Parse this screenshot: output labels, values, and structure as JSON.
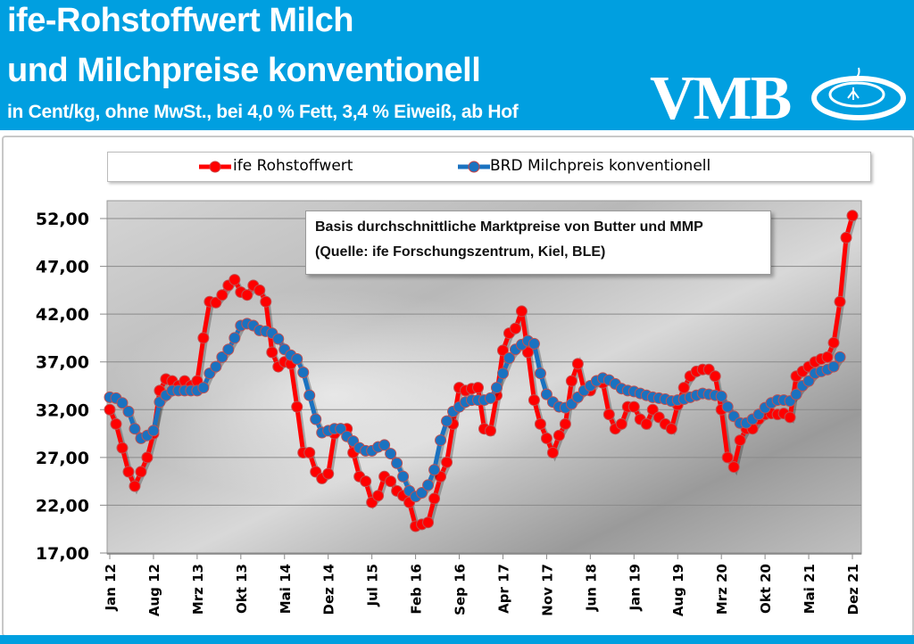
{
  "header": {
    "title_line1": "ife-Rohstoffwert Milch",
    "title_line2": "und Milchpreise konventionell",
    "subtitle": "in Cent/kg, ohne MwSt., bei 4,0 % Fett, 3,4 % Eiweiß, ab Hof",
    "logo_text": "VMB"
  },
  "colors": {
    "header_bg": "#009fe0",
    "red_series": "#ff0000",
    "blue_series": "#1a72c0"
  },
  "chart_data": {
    "type": "line",
    "title": "",
    "xlabel": "",
    "ylabel": "",
    "ylim": [
      17,
      52
    ],
    "y_ticks": [
      "17,00",
      "22,00",
      "27,00",
      "32,00",
      "37,00",
      "42,00",
      "47,00",
      "52,00"
    ],
    "x_tick_labels": [
      "Jan 12",
      "Aug 12",
      "Mrz 13",
      "Okt 13",
      "Mai 14",
      "Dez 14",
      "Jul 15",
      "Feb 16",
      "Sep 16",
      "Apr 17",
      "Nov 17",
      "Jun 18",
      "Jan 19",
      "Aug 19",
      "Mrz 20",
      "Okt 20",
      "Mai 21",
      "Dez 21"
    ],
    "x_start": "Jan 12",
    "x_end": "Dez 21",
    "x_step": "monthly",
    "grid": true,
    "legend_position": "top",
    "annotation_line1": "Basis durchschnittliche Marktpreise von Butter und MMP",
    "annotation_line2": "(Quelle: ife Forschungszentrum, Kiel, BLE)",
    "series": [
      {
        "name": "ife Rohstoffwert",
        "color": "#ff0000",
        "values": [
          32,
          30.5,
          28,
          25.5,
          24,
          25.5,
          27,
          29.5,
          34,
          35.2,
          35,
          34.5,
          35,
          34.5,
          35,
          39.5,
          43.3,
          43.2,
          44,
          45,
          45.6,
          44.3,
          44,
          45,
          44.5,
          43.3,
          38,
          36.5,
          37,
          36.8,
          32.3,
          27.5,
          27.5,
          25.5,
          24.8,
          25.3,
          29.5,
          30,
          30,
          27.5,
          25,
          24.5,
          22.3,
          23,
          25,
          24.5,
          23.5,
          23,
          22.3,
          19.8,
          20,
          20.2,
          22.7,
          25,
          26.5,
          30.5,
          34.3,
          34,
          34.2,
          34.3,
          30,
          29.8,
          33.5,
          38.2,
          40,
          40.5,
          42.3,
          38,
          33,
          30.5,
          29,
          27.5,
          29.3,
          30.5,
          35,
          36.8,
          34,
          34,
          35,
          34.8,
          31.5,
          30,
          30.5,
          32.3,
          32.3,
          31,
          30.5,
          32,
          31.2,
          30.5,
          30,
          32.5,
          34.3,
          35.5,
          36,
          36.2,
          36.2,
          35.5,
          32,
          27,
          26,
          28.8,
          30,
          30,
          31,
          31.5,
          31.6,
          31.5,
          31.6,
          31.2,
          35.5,
          36,
          36.5,
          37,
          37.3,
          37.5,
          39,
          43.3,
          50,
          52.3
        ]
      },
      {
        "name": "BRD Milchpreis konventionell",
        "color": "#1a72c0",
        "values": [
          33.3,
          33.2,
          32.7,
          31.8,
          30,
          29,
          29.3,
          29.8,
          32.8,
          33.5,
          34,
          34,
          34,
          34,
          34,
          34.3,
          35.8,
          36.5,
          37.5,
          38.3,
          39.5,
          40.8,
          41,
          40.8,
          40.3,
          40.2,
          40,
          39.4,
          38.3,
          37.7,
          37.3,
          35.9,
          33.5,
          31,
          29.6,
          29.8,
          30,
          30,
          29.2,
          28.7,
          28,
          27.7,
          27.7,
          28.1,
          28.3,
          27.4,
          26.4,
          25,
          23.5,
          22.9,
          23.3,
          24.1,
          25.7,
          28.8,
          30.8,
          31.8,
          32.3,
          32.8,
          33,
          33,
          33,
          33.2,
          34.3,
          35.8,
          37.4,
          38.3,
          38.8,
          39.2,
          38.9,
          35.8,
          33.6,
          32.8,
          32.3,
          32.2,
          32.6,
          33.3,
          34,
          34.5,
          35,
          35.3,
          35.1,
          34.7,
          34.2,
          34,
          33.9,
          33.7,
          33.5,
          33.3,
          33.2,
          33.1,
          32.9,
          33,
          33.1,
          33.3,
          33.5,
          33.7,
          33.6,
          33.5,
          33.4,
          32.3,
          31.3,
          30.6,
          30.6,
          31,
          31.5,
          32.2,
          32.7,
          33,
          33,
          32.9,
          33.6,
          34.5,
          35,
          35.8,
          36,
          36.2,
          36.5,
          37.5
        ]
      }
    ]
  }
}
